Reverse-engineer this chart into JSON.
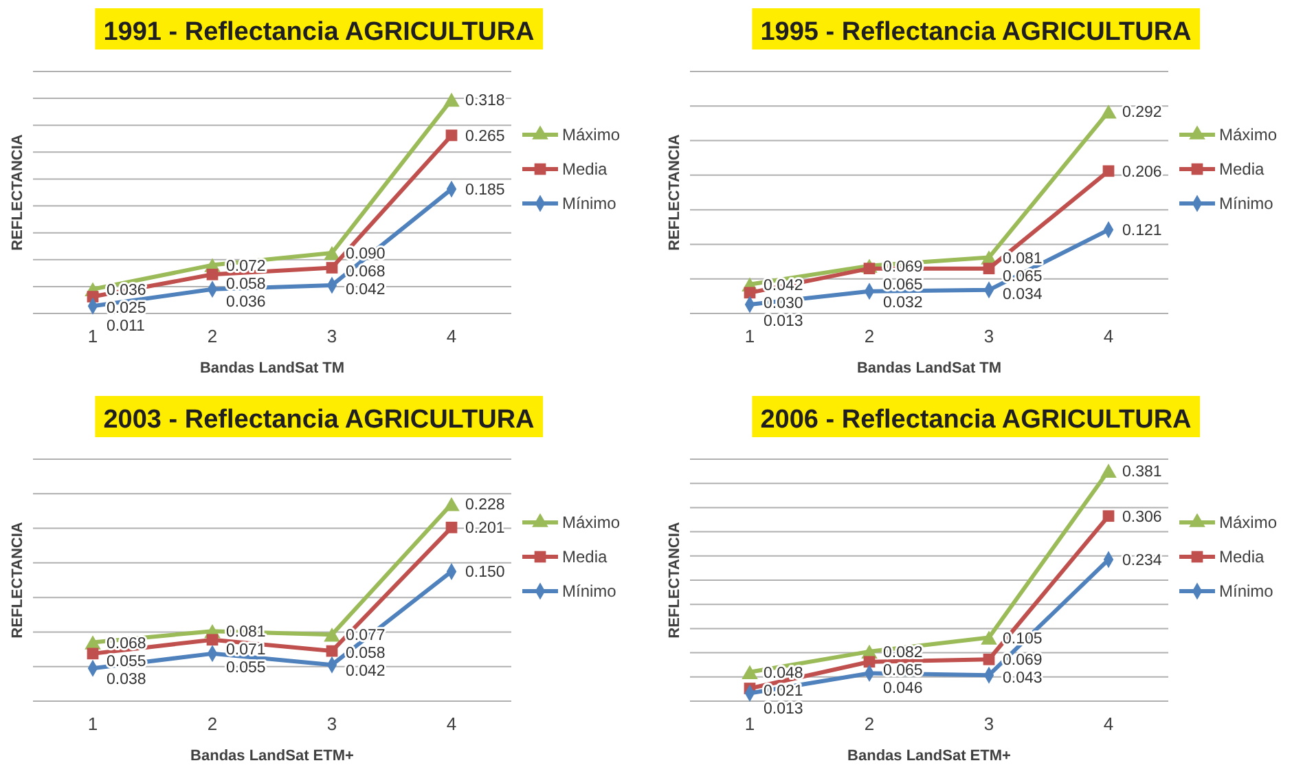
{
  "chart_data": [
    {
      "type": "line",
      "title": "1991 - Reflectancia AGRICULTURA",
      "xlabel": "Bandas LandSat TM",
      "ylabel": "REFLECTANCIA",
      "categories": [
        "1",
        "2",
        "3",
        "4"
      ],
      "ylim": [
        0,
        0.36
      ],
      "yticks": [
        {
          "value": 0,
          "label": null
        },
        {
          "value": 0.04,
          "label": null
        },
        {
          "value": 0.08,
          "label": null
        },
        {
          "value": 0.12,
          "label": null
        },
        {
          "value": 0.16,
          "label": null
        },
        {
          "value": 0.2,
          "label": null
        },
        {
          "value": 0.24,
          "label": null
        }
      ],
      "tick_labels": "x",
      "grid": "y",
      "legend": "right",
      "series": [
        {
          "name": "Máximo",
          "color": "#9bbb59",
          "marker": "triangle",
          "values": [
            0.036,
            0.072,
            0.09,
            0.318
          ],
          "value_labels": [
            "0.036",
            "0.072",
            "0.090",
            "0.318"
          ]
        },
        {
          "name": "Media",
          "color": "#c0504d",
          "marker": "square",
          "values": [
            0.025,
            0.058,
            0.068,
            0.265
          ],
          "value_labels": [
            "0.025",
            "0.058",
            "0.068",
            "0.265"
          ]
        },
        {
          "name": "Mínimo",
          "color": "#4f81bd",
          "marker": "diamond",
          "values": [
            0.011,
            0.036,
            0.042,
            0.185
          ],
          "value_labels": [
            "0.011",
            "0.036",
            "0.042",
            "0.185"
          ]
        }
      ]
    },
    {
      "type": "line",
      "title": "1995 - Reflectancia AGRICULTURA",
      "xlabel": "Bandas LandSat TM",
      "ylabel": "REFLECTANCIA",
      "categories": [
        "1",
        "2",
        "3",
        "4"
      ],
      "ylim": [
        0,
        0.35
      ],
      "yticks": [
        {
          "value": 0,
          "label": null
        },
        {
          "value": 0.05,
          "label": null
        },
        {
          "value": 0.1,
          "label": null
        },
        {
          "value": 0.15,
          "label": null
        },
        {
          "value": 0.2,
          "label": null
        }
      ],
      "tick_labels": "x",
      "grid": "y",
      "legend": "right",
      "series": [
        {
          "name": "Máximo",
          "color": "#9bbb59",
          "marker": "triangle",
          "values": [
            0.042,
            0.069,
            0.081,
            0.292
          ],
          "value_labels": [
            "0.042",
            "0.069",
            "0.081",
            "0.292"
          ]
        },
        {
          "name": "Media",
          "color": "#c0504d",
          "marker": "square",
          "values": [
            0.03,
            0.065,
            0.065,
            0.206
          ],
          "value_labels": [
            "0.030",
            "0.065",
            "0.065",
            "0.206"
          ]
        },
        {
          "name": "Mínimo",
          "color": "#4f81bd",
          "marker": "diamond",
          "values": [
            0.013,
            0.032,
            0.034,
            0.121
          ],
          "value_labels": [
            "0.013",
            "0.032",
            "0.034",
            "0.121"
          ]
        }
      ]
    },
    {
      "type": "line",
      "title": "2003 - Reflectancia AGRICULTURA",
      "xlabel": "Bandas LandSat ETM+",
      "ylabel": "REFLECTANCIA",
      "categories": [
        "1",
        "2",
        "3",
        "4"
      ],
      "ylim": [
        0,
        0.28
      ],
      "yticks": [
        {
          "value": 0,
          "label": null
        },
        {
          "value": 0.04,
          "label": null
        },
        {
          "value": 0.08,
          "label": null
        },
        {
          "value": 0.12,
          "label": null
        },
        {
          "value": 0.16,
          "label": null
        },
        {
          "value": 0.2,
          "label": null
        }
      ],
      "tick_labels": "x",
      "grid": "y",
      "legend": "right",
      "series": [
        {
          "name": "Máximo",
          "color": "#9bbb59",
          "marker": "triangle",
          "values": [
            0.068,
            0.081,
            0.077,
            0.228
          ],
          "value_labels": [
            "0.068",
            "0.081",
            "0.077",
            "0.228"
          ]
        },
        {
          "name": "Media",
          "color": "#c0504d",
          "marker": "square",
          "values": [
            0.055,
            0.071,
            0.058,
            0.201
          ],
          "value_labels": [
            "0.055",
            "0.071",
            "0.058",
            "0.201"
          ]
        },
        {
          "name": "Mínimo",
          "color": "#4f81bd",
          "marker": "diamond",
          "values": [
            0.038,
            0.055,
            0.042,
            0.15
          ],
          "value_labels": [
            "0.038",
            "0.055",
            "0.042",
            "0.150"
          ]
        }
      ]
    },
    {
      "type": "line",
      "title": "2006 - Reflectancia AGRICULTURA",
      "xlabel": "Bandas LandSat ETM+",
      "ylabel": "REFLECTANCIA",
      "categories": [
        "1",
        "2",
        "3",
        "4"
      ],
      "ylim": [
        0,
        0.4
      ],
      "yticks": [
        {
          "value": 0,
          "label": null
        },
        {
          "value": 0.04,
          "label": null
        },
        {
          "value": 0.08,
          "label": null
        },
        {
          "value": 0.12,
          "label": null
        },
        {
          "value": 0.16,
          "label": null
        },
        {
          "value": 0.2,
          "label": null
        },
        {
          "value": 0.24,
          "label": null
        },
        {
          "value": 0.28,
          "label": null
        },
        {
          "value": 0.32,
          "label": null
        }
      ],
      "tick_labels": "x",
      "grid": "y",
      "legend": "right",
      "series": [
        {
          "name": "Máximo",
          "color": "#9bbb59",
          "marker": "triangle",
          "values": [
            0.048,
            0.082,
            0.105,
            0.381
          ],
          "value_labels": [
            "0.048",
            "0.082",
            "0.105",
            "0.381"
          ]
        },
        {
          "name": "Media",
          "color": "#c0504d",
          "marker": "square",
          "values": [
            0.021,
            0.065,
            0.069,
            0.306
          ],
          "value_labels": [
            "0.021",
            "0.065",
            "0.069",
            "0.306"
          ]
        },
        {
          "name": "Mínimo",
          "color": "#4f81bd",
          "marker": "diamond",
          "values": [
            0.013,
            0.046,
            0.043,
            0.234
          ],
          "value_labels": [
            "0.013",
            "0.046",
            "0.043",
            "0.234"
          ]
        }
      ]
    }
  ]
}
